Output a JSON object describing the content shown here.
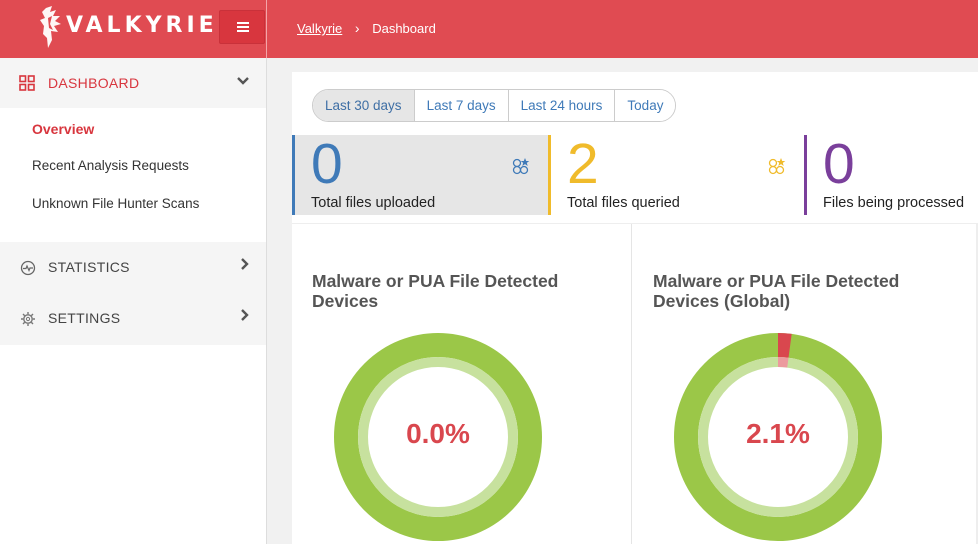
{
  "app": {
    "logo_text": "VALKYRIE"
  },
  "breadcrumb": {
    "home": "Valkyrie",
    "separator": "›",
    "current": "Dashboard"
  },
  "sidebar": {
    "dashboard": {
      "label": "DASHBOARD",
      "chevron": "⌄"
    },
    "sub_items": [
      {
        "label": "Overview",
        "active": true
      },
      {
        "label": "Recent Analysis Requests",
        "active": false
      },
      {
        "label": "Unknown File Hunter Scans",
        "active": false
      }
    ],
    "statistics": {
      "label": "STATISTICS",
      "chevron": "›"
    },
    "settings": {
      "label": "SETTINGS",
      "chevron": "›"
    }
  },
  "range_tabs": [
    {
      "label": "Last 30 days",
      "active": true
    },
    {
      "label": "Last 7 days",
      "active": false
    },
    {
      "label": "Last 24 hours",
      "active": false
    },
    {
      "label": "Today",
      "active": false
    }
  ],
  "stats": [
    {
      "value": "0",
      "caption": "Total files uploaded",
      "color": "#3f7ab8",
      "icon": "files-icon"
    },
    {
      "value": "2",
      "caption": "Total files queried",
      "color": "#f0bb2b",
      "icon": "files-icon"
    },
    {
      "value": "0",
      "caption": "Files being processed",
      "color": "#7a3f9b"
    }
  ],
  "panels": [
    {
      "title": "Malware or PUA File Detected Devices",
      "percent_label": "0.0%",
      "percent": 0.0
    },
    {
      "title": "Malware or PUA File Detected Devices (Global)",
      "percent_label": "2.1%",
      "percent": 2.1
    }
  ],
  "colors": {
    "brand": "#e04b52",
    "donut_ok": "#9bc748",
    "donut_ok_inner": "#c7e19e",
    "donut_bad": "#d9474e"
  }
}
